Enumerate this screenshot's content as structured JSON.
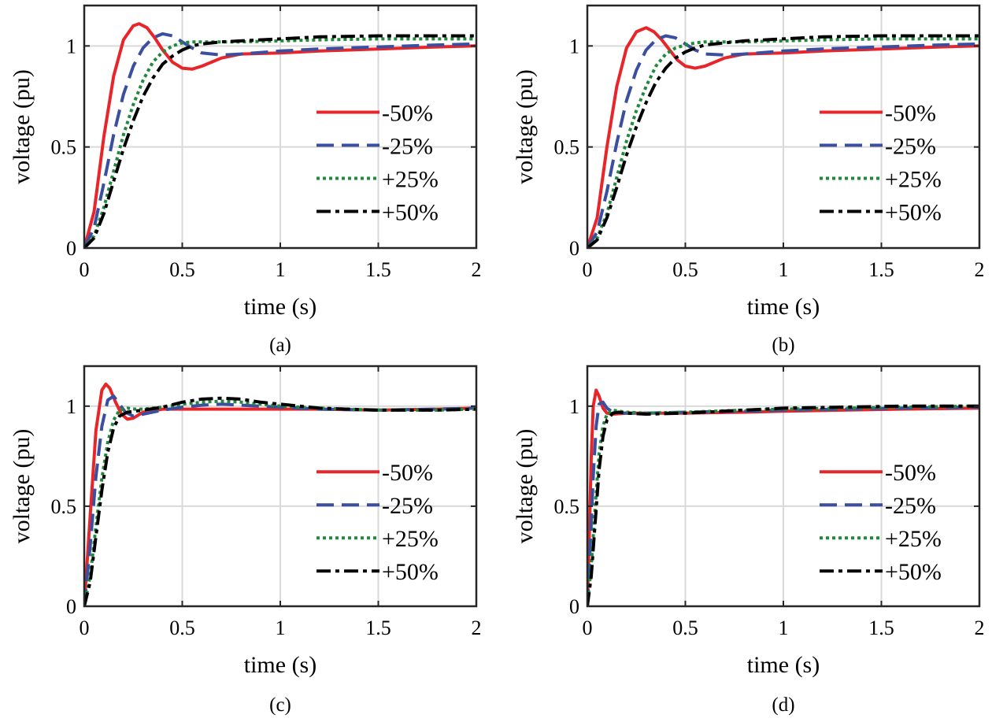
{
  "chart_data": [
    {
      "type": "line",
      "caption": "(a)",
      "xlabel": "time (s)",
      "ylabel": "voltage (pu)",
      "xlim": [
        0,
        2
      ],
      "ylim": [
        0,
        1.2
      ],
      "xticks": [
        0,
        0.5,
        1,
        1.5,
        2
      ],
      "xtick_labels": [
        "0",
        "0.5",
        "1",
        "1.5",
        "2"
      ],
      "yticks": [
        0,
        0.5,
        1
      ],
      "ytick_labels": [
        "0",
        "0.5",
        "1"
      ],
      "grid": true,
      "legend_position": "right",
      "series": [
        {
          "name": "-50%",
          "color": "#e8262a",
          "style": "solid",
          "x": [
            0,
            0.05,
            0.1,
            0.15,
            0.2,
            0.25,
            0.28,
            0.32,
            0.36,
            0.4,
            0.45,
            0.5,
            0.55,
            0.6,
            0.7,
            0.8,
            1.0,
            1.2,
            1.5,
            1.8,
            2.0
          ],
          "y": [
            0,
            0.18,
            0.55,
            0.85,
            1.03,
            1.1,
            1.11,
            1.09,
            1.04,
            0.98,
            0.92,
            0.89,
            0.885,
            0.9,
            0.94,
            0.96,
            0.965,
            0.975,
            0.985,
            0.995,
            1.0
          ]
        },
        {
          "name": "-25%",
          "color": "#3a4fa0",
          "style": "dashed",
          "x": [
            0,
            0.05,
            0.1,
            0.15,
            0.2,
            0.25,
            0.3,
            0.35,
            0.4,
            0.45,
            0.5,
            0.55,
            0.6,
            0.7,
            0.8,
            1.0,
            1.2,
            1.5,
            1.8,
            2.0
          ],
          "y": [
            0,
            0.1,
            0.32,
            0.56,
            0.76,
            0.9,
            0.99,
            1.04,
            1.06,
            1.05,
            1.02,
            0.99,
            0.965,
            0.955,
            0.96,
            0.975,
            0.985,
            0.995,
            1.005,
            1.01
          ]
        },
        {
          "name": "+25%",
          "color": "#1f8a3c",
          "style": "dotted",
          "x": [
            0,
            0.05,
            0.1,
            0.15,
            0.2,
            0.25,
            0.3,
            0.35,
            0.4,
            0.45,
            0.5,
            0.55,
            0.6,
            0.7,
            0.8,
            1.0,
            1.2,
            1.5,
            1.8,
            2.0
          ],
          "y": [
            0,
            0.06,
            0.2,
            0.38,
            0.56,
            0.71,
            0.83,
            0.92,
            0.97,
            1.0,
            1.015,
            1.02,
            1.02,
            1.02,
            1.02,
            1.025,
            1.03,
            1.035,
            1.035,
            1.035
          ]
        },
        {
          "name": "+50%",
          "color": "#000000",
          "style": "dashdot",
          "x": [
            0,
            0.05,
            0.1,
            0.15,
            0.2,
            0.25,
            0.3,
            0.35,
            0.4,
            0.45,
            0.5,
            0.55,
            0.6,
            0.7,
            0.8,
            1.0,
            1.2,
            1.5,
            1.8,
            2.0
          ],
          "y": [
            0,
            0.05,
            0.17,
            0.33,
            0.49,
            0.63,
            0.75,
            0.84,
            0.91,
            0.95,
            0.98,
            1.0,
            1.01,
            1.02,
            1.025,
            1.035,
            1.045,
            1.05,
            1.05,
            1.05
          ]
        }
      ]
    },
    {
      "type": "line",
      "caption": "(b)",
      "xlabel": "time (s)",
      "ylabel": "voltage (pu)",
      "xlim": [
        0,
        2
      ],
      "ylim": [
        0,
        1.2
      ],
      "xticks": [
        0,
        0.5,
        1,
        1.5,
        2
      ],
      "xtick_labels": [
        "0",
        "0.5",
        "1",
        "1.5",
        "2"
      ],
      "yticks": [
        0,
        0.5,
        1
      ],
      "ytick_labels": [
        "0",
        "0.5",
        "1"
      ],
      "grid": true,
      "legend_position": "right",
      "series": [
        {
          "name": "-50%",
          "color": "#e8262a",
          "style": "solid",
          "x": [
            0,
            0.05,
            0.1,
            0.15,
            0.2,
            0.25,
            0.3,
            0.34,
            0.38,
            0.42,
            0.46,
            0.5,
            0.55,
            0.6,
            0.7,
            0.8,
            1.0,
            1.2,
            1.5,
            1.8,
            2.0
          ],
          "y": [
            0,
            0.15,
            0.5,
            0.8,
            0.99,
            1.07,
            1.09,
            1.07,
            1.03,
            0.98,
            0.93,
            0.9,
            0.89,
            0.9,
            0.94,
            0.96,
            0.965,
            0.975,
            0.985,
            0.995,
            1.0
          ]
        },
        {
          "name": "-25%",
          "color": "#3a4fa0",
          "style": "dashed",
          "x": [
            0,
            0.05,
            0.1,
            0.15,
            0.2,
            0.25,
            0.3,
            0.35,
            0.4,
            0.45,
            0.5,
            0.55,
            0.6,
            0.7,
            0.8,
            1.0,
            1.2,
            1.5,
            1.8,
            2.0
          ],
          "y": [
            0,
            0.08,
            0.28,
            0.52,
            0.73,
            0.88,
            0.98,
            1.03,
            1.05,
            1.04,
            1.01,
            0.98,
            0.96,
            0.955,
            0.96,
            0.975,
            0.985,
            0.995,
            1.005,
            1.01
          ]
        },
        {
          "name": "+25%",
          "color": "#1f8a3c",
          "style": "dotted",
          "x": [
            0,
            0.05,
            0.1,
            0.15,
            0.2,
            0.25,
            0.3,
            0.35,
            0.4,
            0.45,
            0.5,
            0.55,
            0.6,
            0.7,
            0.8,
            1.0,
            1.2,
            1.5,
            1.8,
            2.0
          ],
          "y": [
            0,
            0.05,
            0.17,
            0.35,
            0.53,
            0.68,
            0.8,
            0.9,
            0.96,
            0.99,
            1.005,
            1.015,
            1.02,
            1.02,
            1.02,
            1.025,
            1.03,
            1.035,
            1.035,
            1.035
          ]
        },
        {
          "name": "+50%",
          "color": "#000000",
          "style": "dashdot",
          "x": [
            0,
            0.05,
            0.1,
            0.15,
            0.2,
            0.25,
            0.3,
            0.35,
            0.4,
            0.45,
            0.5,
            0.55,
            0.6,
            0.7,
            0.8,
            1.0,
            1.2,
            1.5,
            1.8,
            2.0
          ],
          "y": [
            0,
            0.04,
            0.15,
            0.3,
            0.46,
            0.6,
            0.72,
            0.82,
            0.89,
            0.94,
            0.97,
            0.99,
            1.005,
            1.015,
            1.025,
            1.035,
            1.045,
            1.05,
            1.05,
            1.05
          ]
        }
      ]
    },
    {
      "type": "line",
      "caption": "(c)",
      "xlabel": "time (s)",
      "ylabel": "voltage (pu)",
      "xlim": [
        0,
        2
      ],
      "ylim": [
        0,
        1.2
      ],
      "xticks": [
        0,
        0.5,
        1,
        1.5,
        2
      ],
      "xtick_labels": [
        "0",
        "0.5",
        "1",
        "1.5",
        "2"
      ],
      "yticks": [
        0,
        0.5,
        1
      ],
      "ytick_labels": [
        "0",
        "0.5",
        "1"
      ],
      "grid": true,
      "legend_position": "right",
      "series": [
        {
          "name": "-50%",
          "color": "#e8262a",
          "style": "solid",
          "x": [
            0,
            0.03,
            0.06,
            0.09,
            0.11,
            0.13,
            0.16,
            0.19,
            0.22,
            0.25,
            0.3,
            0.4,
            0.6,
            0.8,
            1.0,
            1.2,
            1.5,
            1.8,
            2.0
          ],
          "y": [
            0,
            0.45,
            0.88,
            1.08,
            1.11,
            1.09,
            1.02,
            0.96,
            0.935,
            0.94,
            0.97,
            0.985,
            0.985,
            0.985,
            0.985,
            0.985,
            0.98,
            0.985,
            0.99
          ]
        },
        {
          "name": "-25%",
          "color": "#3a4fa0",
          "style": "dashed",
          "x": [
            0,
            0.03,
            0.06,
            0.09,
            0.12,
            0.15,
            0.18,
            0.21,
            0.25,
            0.3,
            0.4,
            0.5,
            0.6,
            0.7,
            0.8,
            1.0,
            1.2,
            1.5,
            1.8,
            2.0
          ],
          "y": [
            0,
            0.3,
            0.65,
            0.9,
            1.03,
            1.05,
            1.01,
            0.97,
            0.95,
            0.96,
            0.98,
            0.995,
            1.005,
            1.01,
            1.005,
            0.995,
            0.985,
            0.98,
            0.985,
            0.99
          ]
        },
        {
          "name": "+25%",
          "color": "#1f8a3c",
          "style": "dotted",
          "x": [
            0,
            0.03,
            0.06,
            0.09,
            0.12,
            0.15,
            0.18,
            0.22,
            0.26,
            0.3,
            0.4,
            0.5,
            0.6,
            0.7,
            0.8,
            0.9,
            1.0,
            1.2,
            1.5,
            1.8,
            2.0
          ],
          "y": [
            0,
            0.15,
            0.4,
            0.64,
            0.82,
            0.93,
            0.98,
            0.99,
            0.985,
            0.985,
            0.995,
            1.01,
            1.02,
            1.025,
            1.02,
            1.01,
            1.0,
            0.99,
            0.98,
            0.98,
            0.985
          ]
        },
        {
          "name": "+50%",
          "color": "#000000",
          "style": "dashdot",
          "x": [
            0,
            0.03,
            0.06,
            0.09,
            0.12,
            0.15,
            0.18,
            0.22,
            0.26,
            0.3,
            0.4,
            0.5,
            0.6,
            0.7,
            0.8,
            0.9,
            1.0,
            1.2,
            1.5,
            1.8,
            2.0
          ],
          "y": [
            0,
            0.12,
            0.35,
            0.58,
            0.77,
            0.89,
            0.95,
            0.97,
            0.975,
            0.98,
            0.995,
            1.02,
            1.035,
            1.04,
            1.035,
            1.02,
            1.01,
            0.99,
            0.98,
            0.98,
            0.985
          ]
        }
      ]
    },
    {
      "type": "line",
      "caption": "(d)",
      "xlabel": "time (s)",
      "ylabel": "voltage (pu)",
      "xlim": [
        0,
        2
      ],
      "ylim": [
        0,
        1.2
      ],
      "xticks": [
        0,
        0.5,
        1,
        1.5,
        2
      ],
      "xtick_labels": [
        "0",
        "0.5",
        "1",
        "1.5",
        "2"
      ],
      "yticks": [
        0,
        0.5,
        1
      ],
      "ytick_labels": [
        "0",
        "0.5",
        "1"
      ],
      "grid": true,
      "legend_position": "right",
      "series": [
        {
          "name": "-50%",
          "color": "#e8262a",
          "style": "solid",
          "x": [
            0,
            0.01,
            0.02,
            0.03,
            0.045,
            0.06,
            0.08,
            0.1,
            0.13,
            0.2,
            0.3,
            0.5,
            0.8,
            1.0,
            1.3,
            1.6,
            2.0
          ],
          "y": [
            0,
            0.35,
            0.75,
            1.0,
            1.08,
            1.05,
            0.99,
            0.965,
            0.96,
            0.965,
            0.965,
            0.965,
            0.97,
            0.975,
            0.98,
            0.985,
            0.99
          ]
        },
        {
          "name": "-25%",
          "color": "#3a4fa0",
          "style": "dashed",
          "x": [
            0,
            0.015,
            0.03,
            0.045,
            0.06,
            0.08,
            0.1,
            0.13,
            0.2,
            0.3,
            0.5,
            0.8,
            1.0,
            1.3,
            1.6,
            2.0
          ],
          "y": [
            0,
            0.3,
            0.65,
            0.9,
            1.01,
            1.02,
            0.99,
            0.97,
            0.965,
            0.965,
            0.97,
            0.975,
            0.98,
            0.985,
            0.99,
            0.995
          ]
        },
        {
          "name": "+25%",
          "color": "#1f8a3c",
          "style": "dotted",
          "x": [
            0,
            0.02,
            0.04,
            0.06,
            0.08,
            0.1,
            0.13,
            0.16,
            0.2,
            0.3,
            0.5,
            0.8,
            1.0,
            1.3,
            1.6,
            2.0
          ],
          "y": [
            0,
            0.2,
            0.5,
            0.76,
            0.9,
            0.96,
            0.98,
            0.975,
            0.97,
            0.965,
            0.97,
            0.98,
            0.985,
            0.99,
            0.995,
            1.0
          ]
        },
        {
          "name": "+50%",
          "color": "#000000",
          "style": "dashdot",
          "x": [
            0,
            0.02,
            0.04,
            0.06,
            0.08,
            0.1,
            0.13,
            0.16,
            0.2,
            0.3,
            0.5,
            0.8,
            1.0,
            1.3,
            1.6,
            2.0
          ],
          "y": [
            0,
            0.15,
            0.42,
            0.68,
            0.85,
            0.93,
            0.965,
            0.97,
            0.965,
            0.96,
            0.965,
            0.98,
            0.99,
            0.995,
            1.0,
            1.0
          ]
        }
      ]
    }
  ]
}
